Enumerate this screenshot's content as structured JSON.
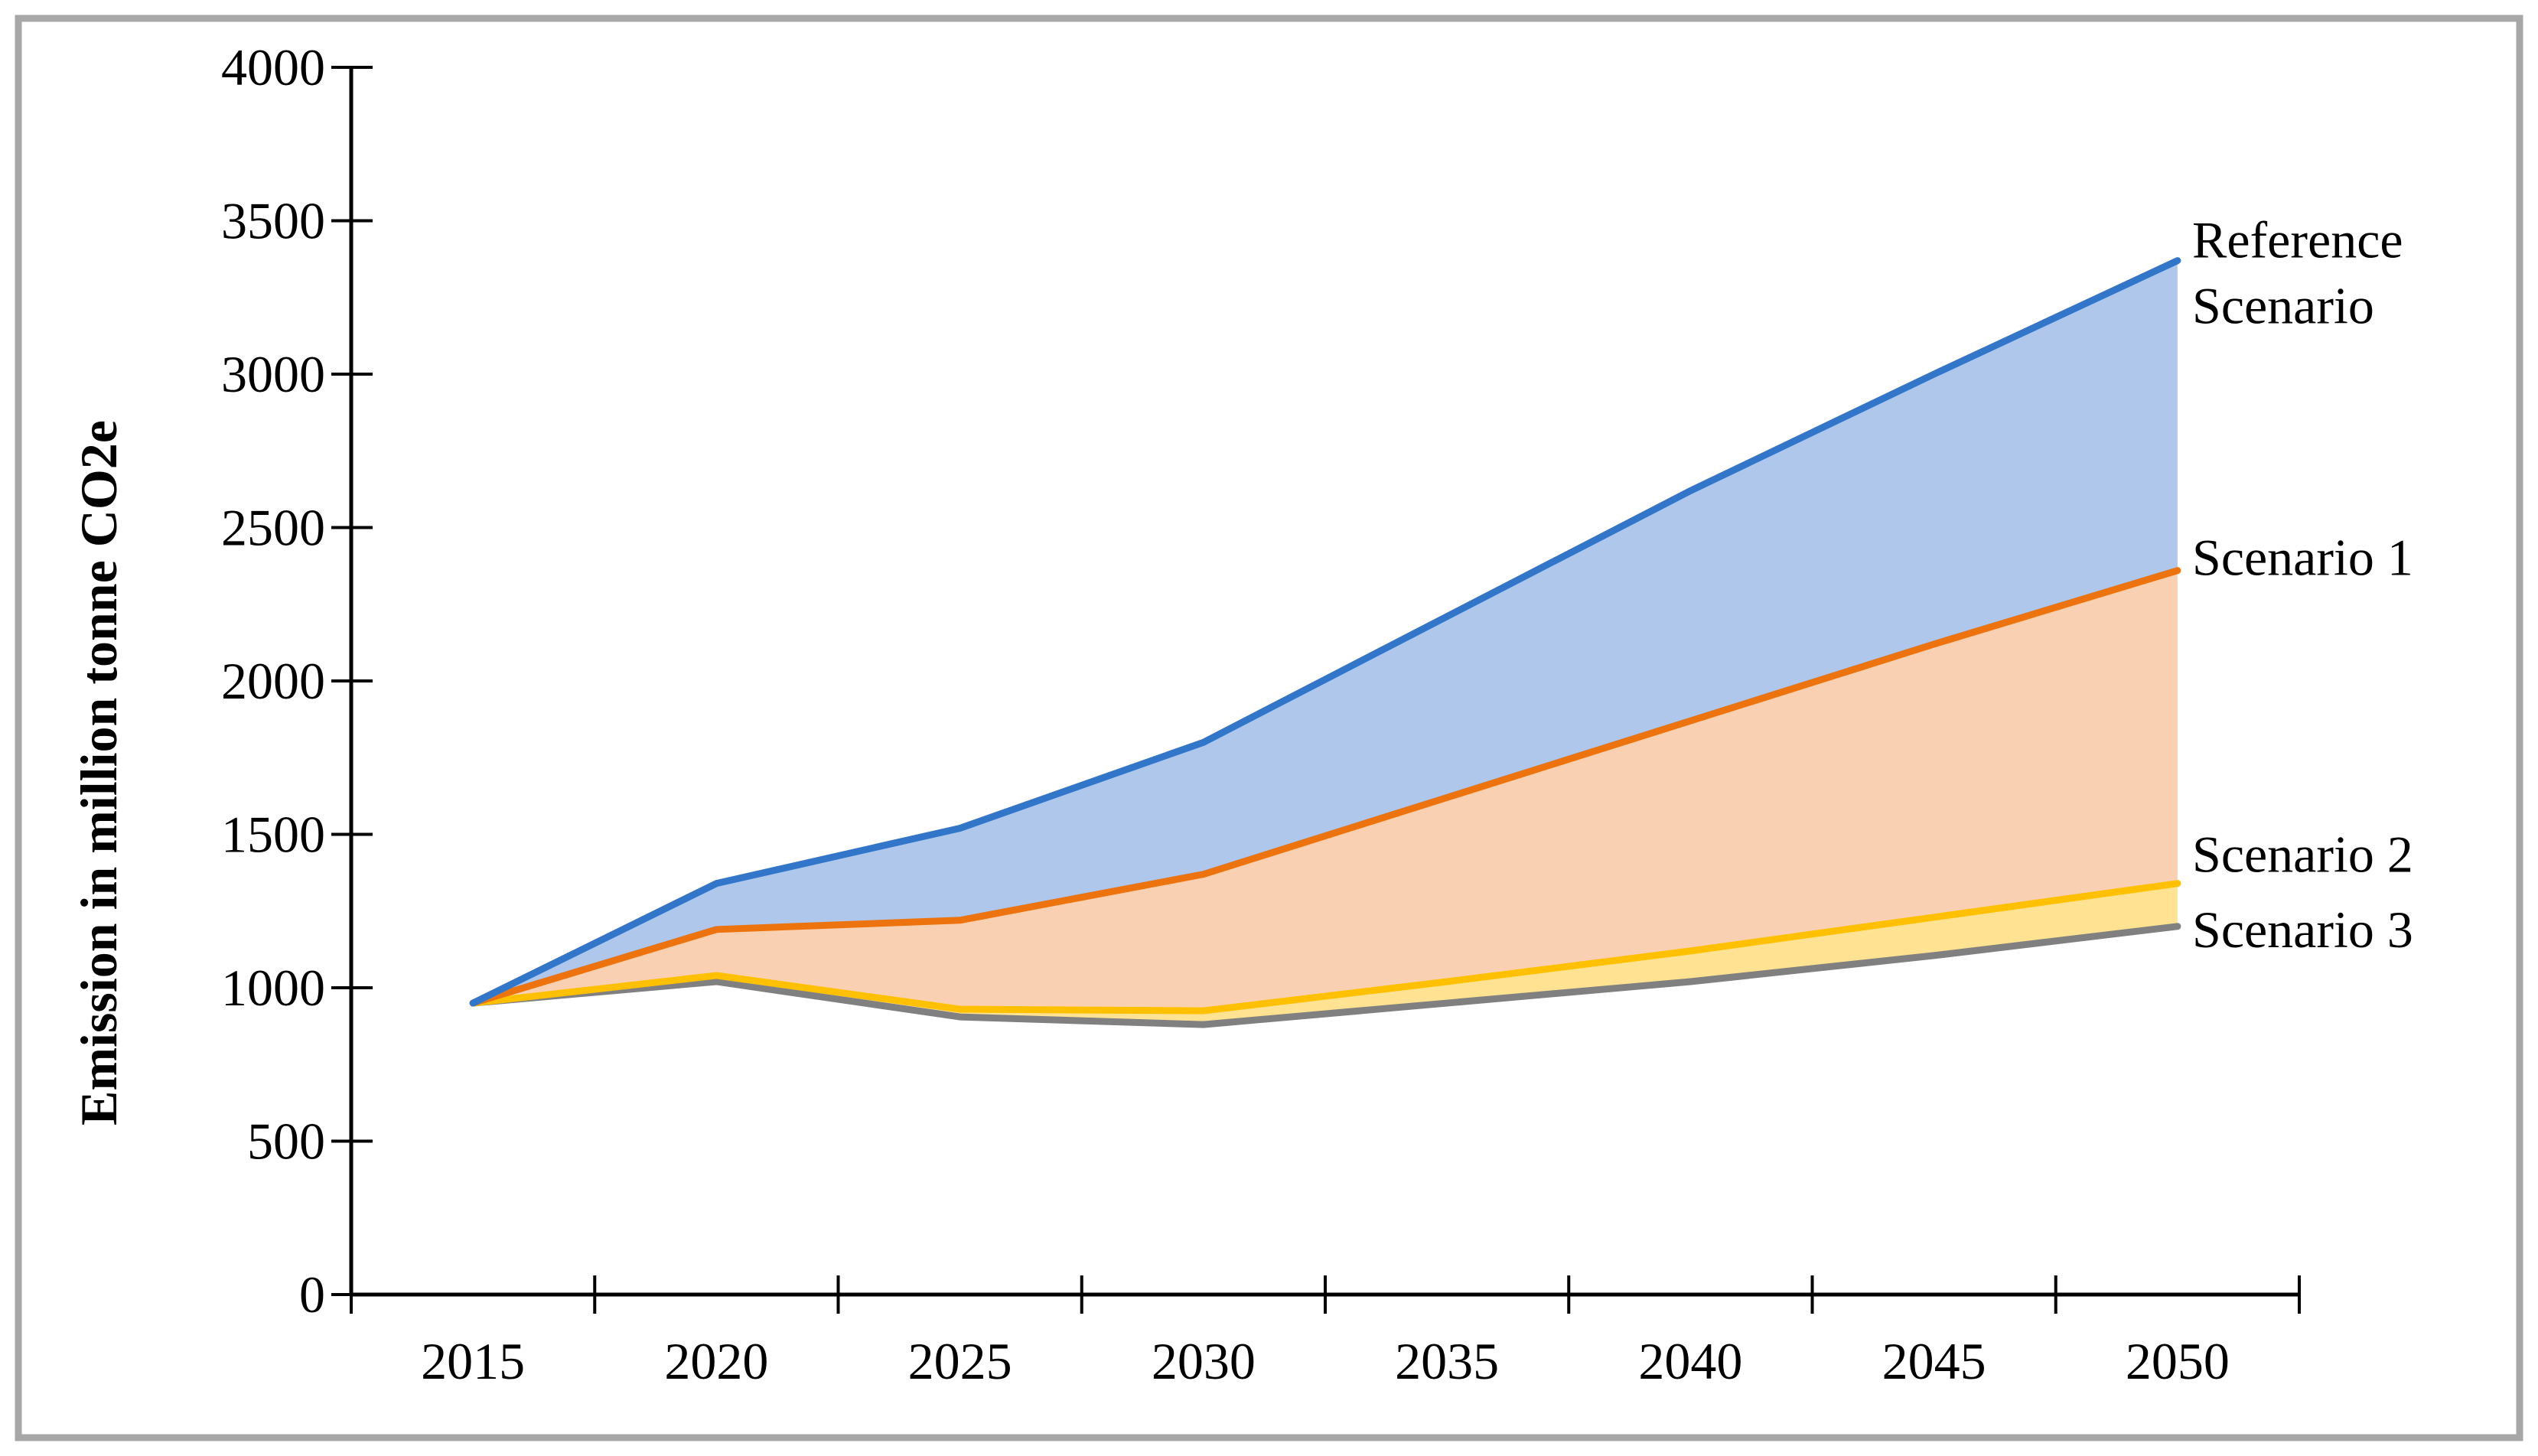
{
  "figure": {
    "background_color": "#FFFFFF",
    "border_color": "#A7A7A7"
  },
  "chart_data": {
    "type": "area",
    "title": "",
    "xlabel": "",
    "ylabel": "Emission in million tonne CO2e",
    "x": [
      2015,
      2020,
      2025,
      2030,
      2035,
      2040,
      2045,
      2050
    ],
    "ylim": [
      0,
      4000
    ],
    "ytick_step": 500,
    "yticks": [
      0,
      500,
      1000,
      1500,
      2000,
      2500,
      3000,
      3500,
      4000
    ],
    "grid": false,
    "legend_position": "labels-at-line-ends-right",
    "series": [
      {
        "name": "Reference Scenario",
        "label_lines": [
          "Reference",
          "Scenario"
        ],
        "line_color": "#3276C9",
        "fill_color": "#AEC7EA",
        "values": [
          950,
          1340,
          1520,
          1800,
          2210,
          2620,
          3000,
          3370
        ]
      },
      {
        "name": "Scenario 1",
        "label_lines": [
          "Scenario 1"
        ],
        "line_color": "#ED730E",
        "fill_color": "#F9D1B2",
        "values": [
          950,
          1190,
          1220,
          1370,
          1620,
          1870,
          2120,
          2360
        ]
      },
      {
        "name": "Scenario 2",
        "label_lines": [
          "Scenario 2"
        ],
        "line_color": "#FFC000",
        "fill_color": "#FFE392",
        "values": [
          950,
          1040,
          930,
          925,
          1020,
          1120,
          1230,
          1340
        ]
      },
      {
        "name": "Scenario 3",
        "label_lines": [
          "Scenario 3"
        ],
        "line_color": "#808080",
        "fill_color": null,
        "values": [
          950,
          1020,
          905,
          880,
          950,
          1020,
          1105,
          1200
        ]
      }
    ]
  }
}
